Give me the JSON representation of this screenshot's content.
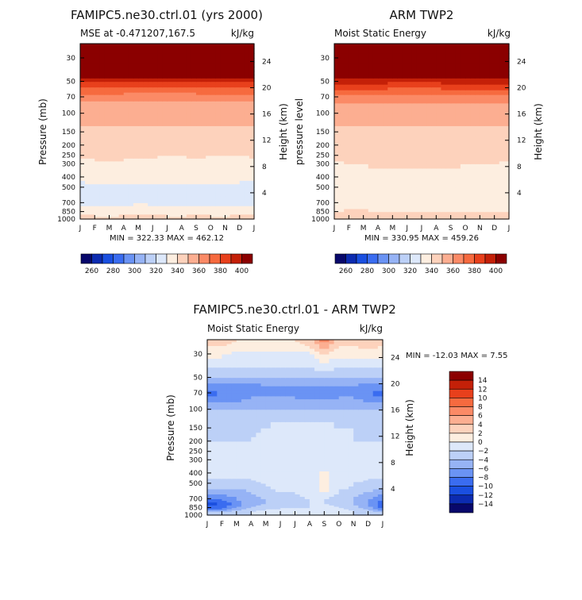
{
  "colors": {
    "scale": [
      "#08086b",
      "#0c2bb0",
      "#1a4fe0",
      "#3a6cf0",
      "#6a93f4",
      "#96b3f5",
      "#bcd0f7",
      "#dde8fa",
      "#fdeee0",
      "#fdd2bc",
      "#fcae91",
      "#fb8a66",
      "#f66a3f",
      "#e8401c",
      "#c42008",
      "#8b0000"
    ]
  },
  "months": [
    "J",
    "F",
    "M",
    "A",
    "M",
    "J",
    "J",
    "A",
    "S",
    "O",
    "N",
    "D",
    "J"
  ],
  "panels": [
    {
      "title": "FAMIPC5.ne30.ctrl.01 (yrs 2000)",
      "subtitle_left": "MSE at -0.471207,167.5",
      "units": "kJ/kg",
      "ylabel_left": "Pressure (mb)",
      "ylabel_right": "Height (km)",
      "minmax": "MIN = 322.33 MAX = 462.12"
    },
    {
      "title": "ARM TWP2",
      "subtitle_left": "Moist Static Energy",
      "units": "kJ/kg",
      "ylabel_left": "pressure level",
      "ylabel_right": "Height (km)",
      "minmax": "MIN = 330.95 MAX = 459.26"
    },
    {
      "title": "FAMIPC5.ne30.ctrl.01 - ARM TWP2",
      "subtitle_left": "Moist Static Energy",
      "units": "kJ/kg",
      "ylabel_left": "Pressure (mb)",
      "ylabel_right": "Height (km)",
      "minmax": "MIN = -12.03 MAX =    7.55"
    }
  ],
  "chart_data": [
    {
      "type": "heatmap",
      "title": "FAMIPC5.ne30.ctrl.01 (yrs 2000)",
      "subtitle": "MSE at -0.471207,167.5",
      "units": "kJ/kg",
      "xlabel": "",
      "ylabel": "Pressure (mb)",
      "ylabel_right": "Height (km)",
      "x_categories": [
        "J",
        "F",
        "M",
        "A",
        "M",
        "J",
        "J",
        "A",
        "S",
        "O",
        "N",
        "D",
        "J"
      ],
      "pressure_ticks": [
        30,
        50,
        70,
        100,
        150,
        200,
        250,
        300,
        400,
        500,
        700,
        850,
        1000
      ],
      "height_ticks": [
        4,
        8,
        12,
        16,
        20,
        24
      ],
      "pressure_range": [
        1000,
        22
      ],
      "min": 322.33,
      "max": 462.12,
      "colorbar_levels": [
        250,
        260,
        270,
        280,
        290,
        300,
        310,
        320,
        330,
        340,
        350,
        360,
        370,
        380,
        390,
        400,
        410
      ],
      "colorbar_labels": [
        "260",
        "280",
        "300",
        "320",
        "340",
        "360",
        "380",
        "400"
      ],
      "field_levels_mb": [
        1000,
        850,
        700,
        600,
        500,
        400,
        300,
        250,
        200,
        150,
        100,
        80,
        70,
        60,
        50,
        40,
        30,
        22
      ],
      "field_values": [
        [
          345,
          345,
          345,
          345,
          345,
          345,
          345,
          345,
          345,
          345,
          345,
          345,
          345
        ],
        [
          338,
          335,
          332,
          336,
          336,
          336,
          335,
          334,
          336,
          335,
          334,
          336,
          338
        ],
        [
          325,
          326,
          328,
          327,
          330,
          328,
          326,
          328,
          327,
          326,
          326,
          325,
          326
        ],
        [
          324,
          325,
          325,
          326,
          327,
          326,
          326,
          326,
          325,
          325,
          325,
          325,
          325
        ],
        [
          326,
          327,
          327,
          328,
          328,
          327,
          327,
          327,
          327,
          327,
          327,
          327,
          326
        ],
        [
          333,
          335,
          336,
          336,
          334,
          334,
          334,
          333,
          333,
          333,
          333,
          333,
          333
        ],
        [
          337,
          338,
          339,
          339,
          338,
          337,
          337,
          337,
          338,
          337,
          337,
          337,
          337
        ],
        [
          341,
          342,
          342,
          341,
          341,
          341,
          340,
          340,
          341,
          340,
          340,
          340,
          341
        ],
        [
          345,
          345,
          345,
          345,
          345,
          345,
          345,
          345,
          345,
          345,
          345,
          345,
          345
        ],
        [
          348,
          348,
          348,
          348,
          348,
          348,
          348,
          348,
          348,
          348,
          348,
          348,
          348
        ],
        [
          352,
          352,
          352,
          352,
          352,
          352,
          352,
          352,
          352,
          352,
          352,
          352,
          352
        ],
        [
          358,
          358,
          358,
          358,
          358,
          358,
          358,
          358,
          358,
          358,
          358,
          358,
          358
        ],
        [
          365,
          365,
          365,
          365,
          364,
          364,
          364,
          364,
          365,
          365,
          365,
          365,
          365
        ],
        [
          375,
          375,
          375,
          375,
          374,
          374,
          374,
          375,
          375,
          375,
          375,
          375,
          375
        ],
        [
          392,
          392,
          392,
          392,
          390,
          390,
          390,
          390,
          391,
          392,
          392,
          392,
          392
        ],
        [
          425,
          425,
          425,
          425,
          425,
          425,
          425,
          425,
          425,
          425,
          425,
          425,
          425
        ],
        [
          450,
          450,
          450,
          450,
          450,
          450,
          450,
          450,
          450,
          450,
          450,
          450,
          450
        ],
        [
          462,
          462,
          462,
          462,
          462,
          462,
          462,
          462,
          462,
          462,
          462,
          462,
          462
        ]
      ]
    },
    {
      "type": "heatmap",
      "title": "ARM TWP2",
      "subtitle": "Moist Static Energy",
      "units": "kJ/kg",
      "xlabel": "",
      "ylabel": "pressure level",
      "ylabel_right": "Height (km)",
      "x_categories": [
        "J",
        "F",
        "M",
        "A",
        "M",
        "J",
        "J",
        "A",
        "S",
        "O",
        "N",
        "D",
        "J"
      ],
      "pressure_ticks": [
        30,
        50,
        70,
        100,
        150,
        200,
        250,
        300,
        400,
        500,
        700,
        850,
        1000
      ],
      "height_ticks": [
        4,
        8,
        12,
        16,
        20,
        24
      ],
      "pressure_range": [
        1000,
        22
      ],
      "min": 330.95,
      "max": 459.26,
      "colorbar_levels": [
        250,
        260,
        270,
        280,
        290,
        300,
        310,
        320,
        330,
        340,
        350,
        360,
        370,
        380,
        390,
        400,
        410
      ],
      "colorbar_labels": [
        "260",
        "280",
        "300",
        "320",
        "340",
        "360",
        "380",
        "400"
      ],
      "field_levels_mb": [
        1000,
        850,
        700,
        600,
        500,
        400,
        300,
        250,
        200,
        150,
        100,
        80,
        70,
        60,
        50,
        40,
        30,
        22
      ],
      "field_values": [
        [
          342,
          342,
          342,
          342,
          342,
          342,
          342,
          342,
          342,
          342,
          342,
          342,
          342
        ],
        [
          340,
          341,
          341,
          340,
          340,
          340,
          340,
          340,
          340,
          340,
          340,
          340,
          340
        ],
        [
          336,
          336,
          337,
          337,
          337,
          337,
          337,
          337,
          337,
          337,
          337,
          337,
          336
        ],
        [
          335,
          336,
          336,
          336,
          336,
          336,
          336,
          336,
          336,
          336,
          336,
          336,
          335
        ],
        [
          336,
          336,
          337,
          337,
          337,
          337,
          337,
          337,
          337,
          337,
          337,
          337,
          336
        ],
        [
          337,
          338,
          338,
          338,
          338,
          338,
          338,
          338,
          338,
          338,
          338,
          337,
          337
        ],
        [
          339,
          340,
          340,
          341,
          341,
          341,
          341,
          341,
          341,
          340,
          340,
          340,
          339
        ],
        [
          342,
          342,
          342,
          342,
          342,
          342,
          342,
          342,
          342,
          342,
          342,
          342,
          342
        ],
        [
          345,
          345,
          345,
          345,
          345,
          345,
          345,
          345,
          345,
          345,
          345,
          345,
          345
        ],
        [
          348,
          348,
          348,
          348,
          348,
          348,
          348,
          348,
          348,
          348,
          348,
          348,
          348
        ],
        [
          353,
          353,
          353,
          353,
          353,
          353,
          353,
          353,
          353,
          353,
          353,
          353,
          353
        ],
        [
          360,
          360,
          360,
          360,
          360,
          360,
          360,
          360,
          360,
          360,
          360,
          360,
          360
        ],
        [
          368,
          368,
          368,
          368,
          367,
          367,
          367,
          367,
          368,
          368,
          368,
          368,
          368
        ],
        [
          378,
          378,
          378,
          378,
          377,
          377,
          377,
          377,
          378,
          378,
          378,
          378,
          378
        ],
        [
          393,
          393,
          393,
          393,
          392,
          392,
          392,
          392,
          393,
          393,
          393,
          393,
          393
        ],
        [
          425,
          425,
          425,
          425,
          425,
          425,
          425,
          425,
          425,
          425,
          425,
          425,
          425
        ],
        [
          450,
          450,
          450,
          450,
          450,
          450,
          450,
          450,
          450,
          450,
          450,
          450,
          450
        ],
        [
          459,
          459,
          459,
          459,
          459,
          459,
          459,
          459,
          459,
          459,
          459,
          459,
          459
        ]
      ]
    },
    {
      "type": "heatmap",
      "title": "FAMIPC5.ne30.ctrl.01 - ARM TWP2",
      "subtitle": "Moist Static Energy",
      "units": "kJ/kg",
      "xlabel": "",
      "ylabel": "Pressure (mb)",
      "ylabel_right": "Height (km)",
      "x_categories": [
        "J",
        "F",
        "M",
        "A",
        "M",
        "J",
        "J",
        "A",
        "S",
        "O",
        "N",
        "D",
        "J"
      ],
      "pressure_ticks": [
        30,
        50,
        70,
        100,
        150,
        200,
        250,
        300,
        400,
        500,
        700,
        850,
        1000
      ],
      "height_ticks": [
        4,
        8,
        12,
        16,
        20,
        24
      ],
      "pressure_range": [
        1000,
        22
      ],
      "min": -12.03,
      "max": 7.55,
      "colorbar_levels": [
        -16,
        -14,
        -12,
        -10,
        -8,
        -6,
        -4,
        -2,
        0,
        2,
        4,
        6,
        8,
        10,
        12,
        14,
        16
      ],
      "colorbar_labels": [
        "14",
        "12",
        "10",
        "8",
        "6",
        "4",
        "2",
        "0",
        "-2",
        "-4",
        "-6",
        "-8",
        "-10",
        "-12",
        "-14"
      ],
      "field_levels_mb": [
        1000,
        920,
        850,
        780,
        700,
        600,
        500,
        450,
        400,
        350,
        300,
        250,
        200,
        150,
        100,
        85,
        70,
        60,
        50,
        40,
        30,
        25,
        22
      ],
      "field_values": [
        [
          -3,
          -3,
          -2,
          -2,
          -2,
          -2,
          -2,
          -2,
          -2,
          -2,
          -2,
          -3,
          -3
        ],
        [
          -4,
          -4,
          -3,
          -2,
          -1,
          -2,
          -1,
          -1,
          -1,
          -1,
          -2,
          -3,
          -4
        ],
        [
          -9,
          -9,
          -6,
          -4,
          -3,
          -2,
          -2,
          -2,
          -1,
          -2,
          -3,
          -5,
          -9
        ],
        [
          -11,
          -10,
          -7,
          -5,
          -4,
          -3,
          -3,
          -2,
          -2,
          -3,
          -4,
          -6,
          -10
        ],
        [
          -8,
          -8,
          -6,
          -5,
          -4,
          -3,
          -3,
          -2,
          -2,
          -3,
          -4,
          -6,
          -8
        ],
        [
          -5,
          -5,
          -5,
          -4,
          -3,
          -2,
          -2,
          -1,
          0.5,
          -2,
          -3,
          -4,
          -5
        ],
        [
          -3,
          -3,
          -3,
          -3,
          -2,
          -1,
          -1,
          -1,
          0.5,
          -1,
          -2,
          -3,
          -3
        ],
        [
          -2,
          -2,
          -2,
          -2,
          -1,
          -1,
          -1,
          -1,
          0.5,
          -1,
          -1,
          -2,
          -2
        ],
        [
          -2,
          -2,
          -2,
          -2,
          -1,
          -1,
          -1,
          -1,
          0.5,
          -1,
          -1,
          -2,
          -2
        ],
        [
          -2,
          -2,
          -2,
          -1.5,
          -1,
          -1,
          -1,
          -1,
          -0.5,
          -1,
          -1,
          -2,
          -2
        ],
        [
          -2,
          -2,
          -2,
          -1.5,
          -1,
          -1,
          -1,
          -1,
          -1,
          -1,
          -1,
          -2,
          -2
        ],
        [
          -2,
          -2,
          -2,
          -2,
          -1,
          -1,
          -1,
          -1,
          -1,
          -1,
          -2,
          -2,
          -2
        ],
        [
          -2,
          -2,
          -2,
          -2,
          -1,
          -1,
          -1,
          -1,
          -1,
          -1,
          -2,
          -2,
          -2
        ],
        [
          -3,
          -3,
          -3,
          -3,
          -2,
          -1,
          -1,
          -1,
          -1,
          -2,
          -2,
          -3,
          -3
        ],
        [
          -4,
          -4,
          -4,
          -4,
          -4,
          -4,
          -4,
          -4,
          -4,
          -4,
          -4,
          -4,
          -4
        ],
        [
          -6,
          -6,
          -6,
          -5,
          -5,
          -5,
          -5,
          -5,
          -5,
          -5,
          -5,
          -6,
          -6
        ],
        [
          -9,
          -8,
          -8,
          -7,
          -7,
          -7,
          -7,
          -8,
          -8,
          -7,
          -7,
          -8,
          -9
        ],
        [
          -7,
          -7,
          -7,
          -8,
          -6,
          -6,
          -6,
          -6,
          -6,
          -6,
          -6,
          -7,
          -7
        ],
        [
          -4,
          -4,
          -4,
          -4,
          -4,
          -4,
          -4,
          -4,
          -4,
          -4,
          -4,
          -4,
          -4
        ],
        [
          -2,
          -2,
          -2,
          -2,
          -2,
          -2,
          -2,
          -2,
          -1,
          -2,
          -2,
          -2,
          -2
        ],
        [
          0.5,
          0.5,
          -1,
          -1,
          -1,
          -1,
          -1,
          -0.5,
          2,
          0.5,
          0.5,
          1,
          0.5
        ],
        [
          2,
          2,
          1,
          1,
          1,
          1,
          1,
          2,
          5,
          2,
          2,
          3,
          2
        ],
        [
          3,
          3,
          2,
          2,
          2,
          2,
          2,
          3,
          7,
          3,
          3,
          4,
          3
        ]
      ]
    }
  ]
}
